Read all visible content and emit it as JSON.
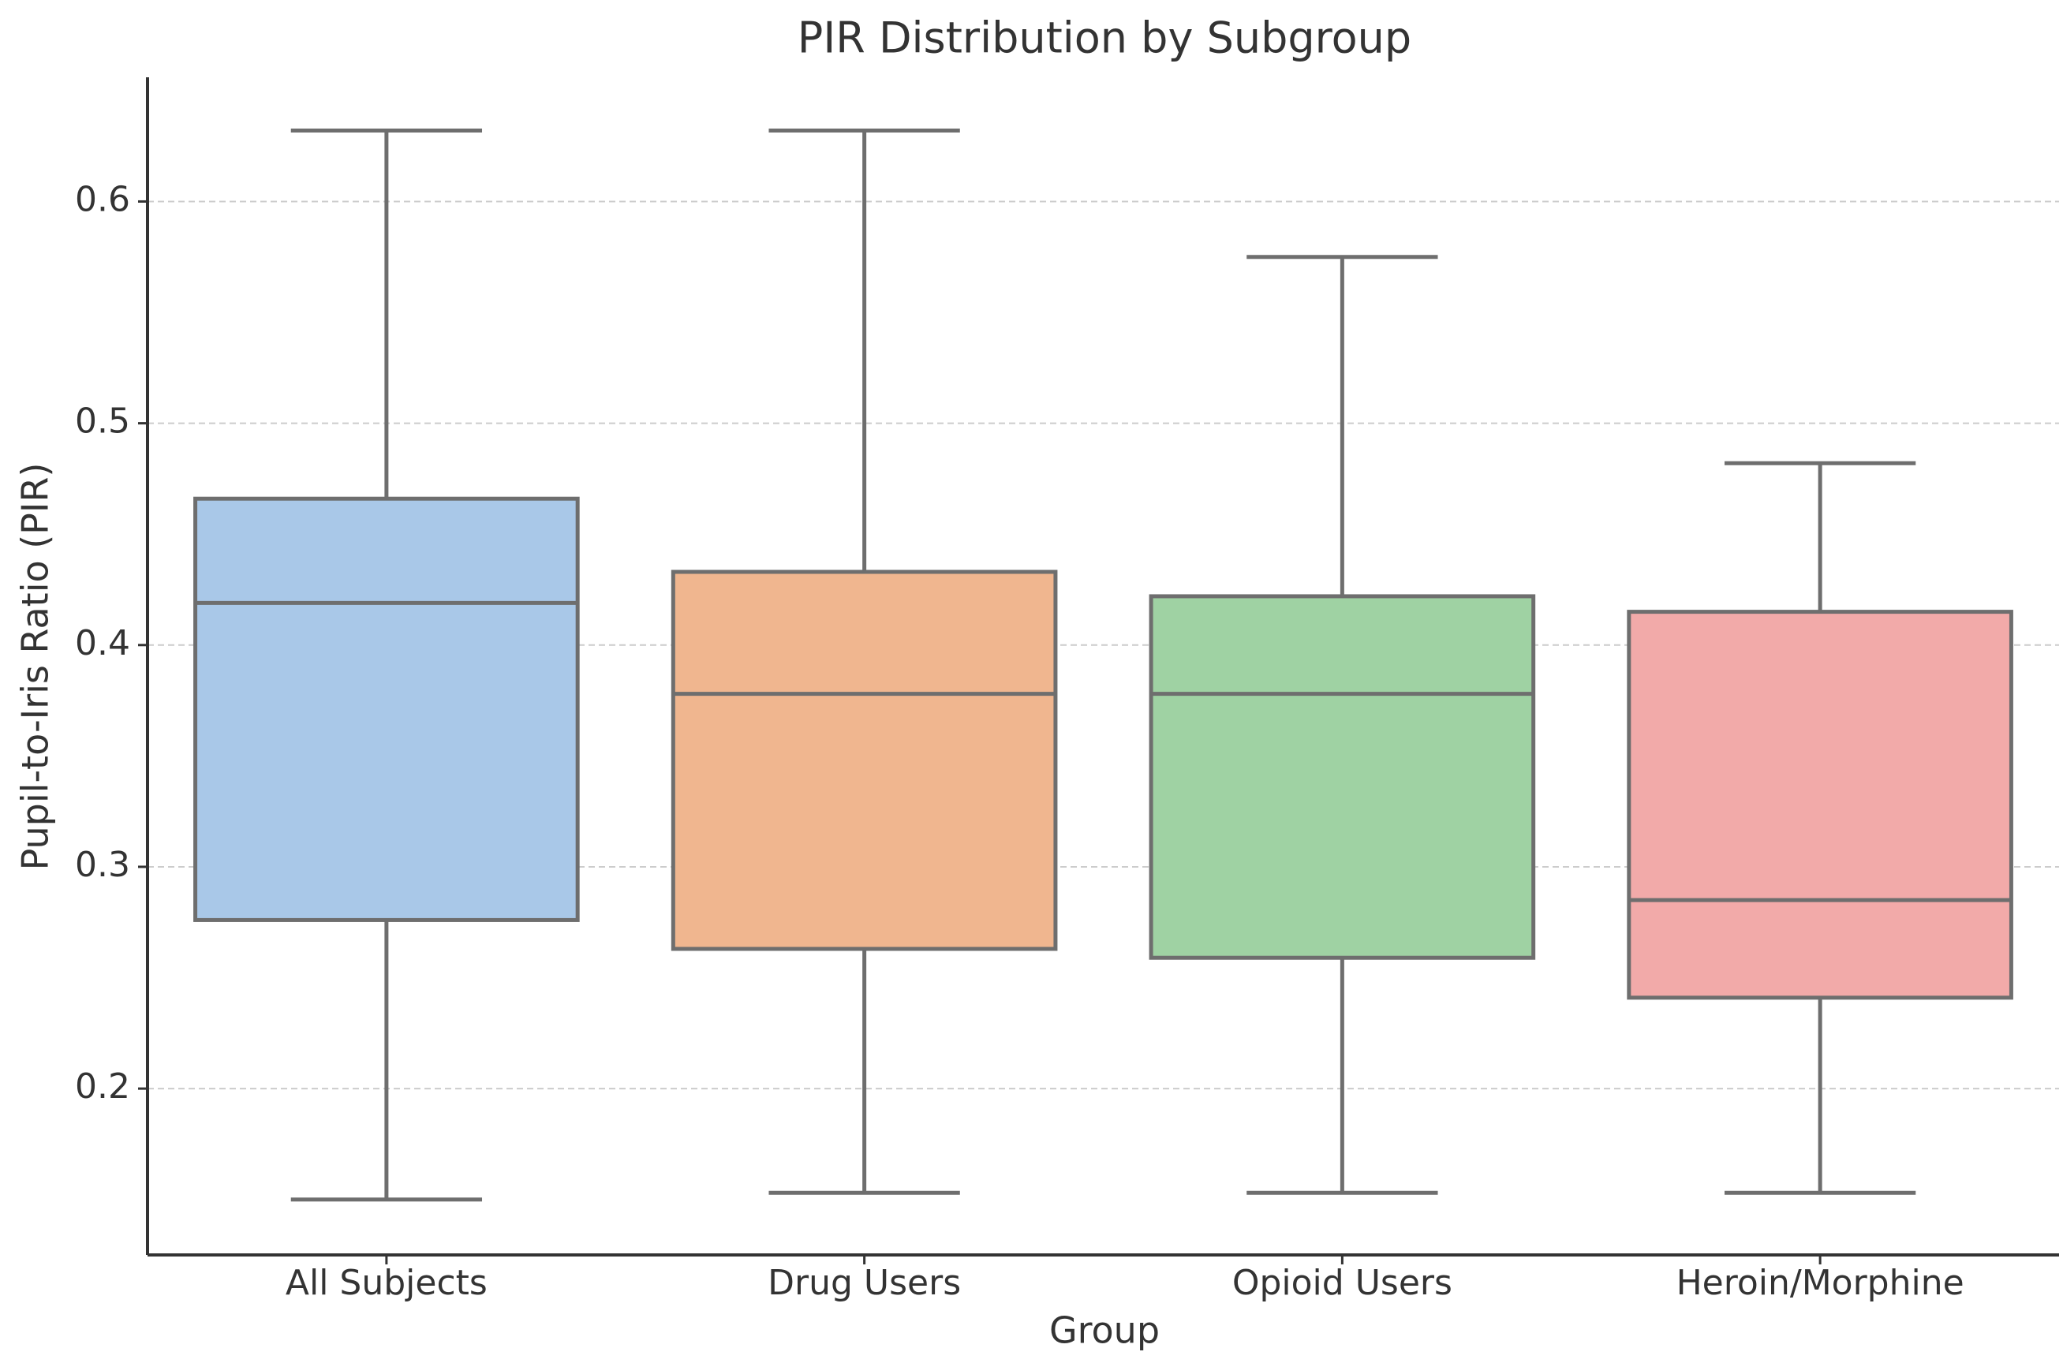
{
  "chart_data": {
    "type": "box",
    "title": "PIR Distribution by Subgroup",
    "x_label": "Group",
    "y_label": "Pupil-to-Iris Ratio (PIR)",
    "categories": [
      "All Subjects",
      "Drug Users",
      "Opioid Users",
      "Heroin/Morphine"
    ],
    "colors": [
      "#a9c8e8",
      "#f0b68f",
      "#9fd2a3",
      "#f2aaa9"
    ],
    "whislo": [
      0.15,
      0.153,
      0.153,
      0.153
    ],
    "q1": [
      0.276,
      0.263,
      0.259,
      0.241
    ],
    "med": [
      0.419,
      0.378,
      0.378,
      0.285
    ],
    "q3": [
      0.466,
      0.433,
      0.422,
      0.415
    ],
    "whishi": [
      0.632,
      0.632,
      0.575,
      0.482
    ],
    "ylim": [
      0.125,
      0.656
    ],
    "yticks": [
      0.2,
      0.3,
      0.4,
      0.5,
      0.6
    ],
    "grid": true
  }
}
